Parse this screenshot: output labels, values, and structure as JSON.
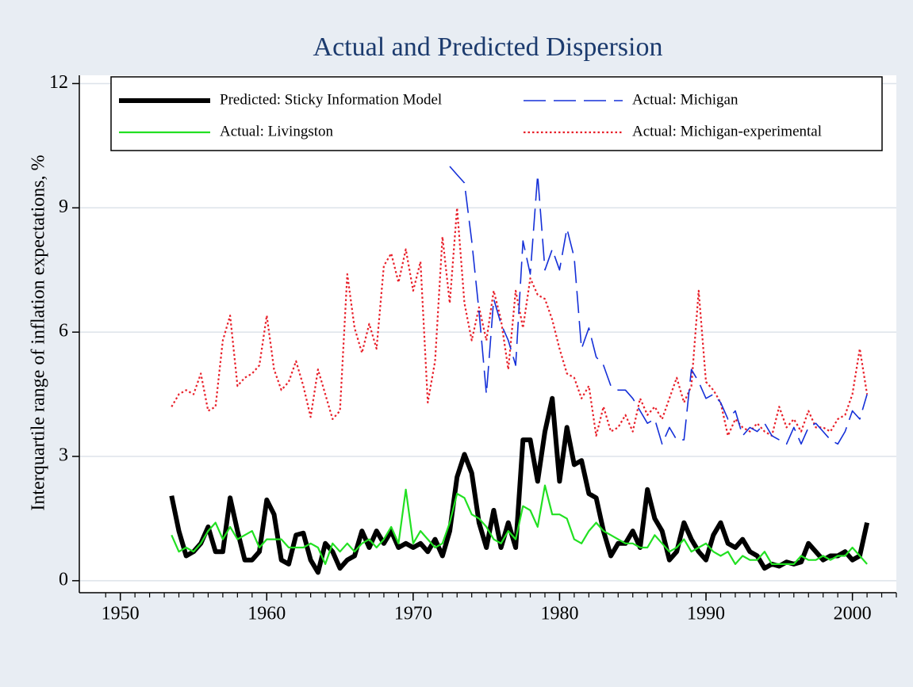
{
  "chart_data": {
    "type": "line",
    "title": "Actual and Predicted Dispersion",
    "y_label": "Interquartile range of inflation expectations, %",
    "x": [
      1953.5,
      1954,
      1954.5,
      1955,
      1955.5,
      1956,
      1956.5,
      1957,
      1957.5,
      1958,
      1958.5,
      1959,
      1959.5,
      1960,
      1960.5,
      1961,
      1961.5,
      1962,
      1962.5,
      1963,
      1963.5,
      1964,
      1964.5,
      1965,
      1965.5,
      1966,
      1966.5,
      1967,
      1967.5,
      1968,
      1968.5,
      1969,
      1969.5,
      1970,
      1970.5,
      1971,
      1971.5,
      1972,
      1972.5,
      1973,
      1973.5,
      1974,
      1974.5,
      1975,
      1975.5,
      1976,
      1976.5,
      1977,
      1977.5,
      1978,
      1978.5,
      1979,
      1979.5,
      1980,
      1980.5,
      1981,
      1981.5,
      1982,
      1982.5,
      1983,
      1983.5,
      1984,
      1984.5,
      1985,
      1985.5,
      1986,
      1986.5,
      1987,
      1987.5,
      1988,
      1988.5,
      1989,
      1989.5,
      1990,
      1990.5,
      1991,
      1991.5,
      1992,
      1992.5,
      1993,
      1993.5,
      1994,
      1994.5,
      1995,
      1995.5,
      1996,
      1996.5,
      1997,
      1997.5,
      1998,
      1998.5,
      1999,
      1999.5,
      2000,
      2000.5,
      2001
    ],
    "series": [
      {
        "name": "Predicted: Sticky Information Model",
        "color": "#000000",
        "width": 6,
        "dash": "none",
        "values": [
          2.05,
          1.2,
          0.6,
          0.7,
          0.9,
          1.3,
          0.7,
          0.7,
          2.0,
          1.2,
          0.5,
          0.5,
          0.7,
          1.95,
          1.6,
          0.5,
          0.4,
          1.1,
          1.15,
          0.5,
          0.2,
          0.9,
          0.7,
          0.3,
          0.5,
          0.6,
          1.2,
          0.8,
          1.2,
          0.9,
          1.2,
          0.8,
          0.9,
          0.8,
          0.9,
          0.7,
          1.0,
          0.6,
          1.2,
          2.5,
          3.05,
          2.6,
          1.4,
          0.8,
          1.7,
          0.8,
          1.4,
          0.8,
          3.4,
          3.4,
          2.4,
          3.6,
          4.4,
          2.4,
          3.7,
          2.8,
          2.9,
          2.1,
          2.0,
          1.2,
          0.6,
          0.9,
          0.9,
          1.2,
          0.8,
          2.2,
          1.5,
          1.2,
          0.5,
          0.7,
          1.4,
          1.0,
          0.7,
          0.5,
          1.1,
          1.4,
          0.9,
          0.8,
          1.0,
          0.7,
          0.6,
          0.3,
          0.4,
          0.35,
          0.45,
          0.4,
          0.45,
          0.9,
          0.7,
          0.5,
          0.6,
          0.6,
          0.7,
          0.5,
          0.6,
          1.4
        ]
      },
      {
        "name": "Actual: Michigan",
        "color": "#1530d8",
        "width": 1.6,
        "dash": "28 10",
        "values": [
          null,
          null,
          null,
          null,
          null,
          null,
          null,
          null,
          null,
          null,
          null,
          null,
          null,
          null,
          null,
          null,
          null,
          null,
          null,
          null,
          null,
          null,
          null,
          null,
          null,
          null,
          null,
          null,
          null,
          null,
          null,
          null,
          null,
          null,
          null,
          null,
          null,
          null,
          10.0,
          9.8,
          9.6,
          8.2,
          6.5,
          4.5,
          6.8,
          6.2,
          5.8,
          5.2,
          8.2,
          7.4,
          9.8,
          7.5,
          8.0,
          7.5,
          8.5,
          7.8,
          5.6,
          6.1,
          5.4,
          5.2,
          4.7,
          4.6,
          4.6,
          4.4,
          4.1,
          3.8,
          3.9,
          3.3,
          3.7,
          3.4,
          3.4,
          5.1,
          4.8,
          4.4,
          4.5,
          4.3,
          3.9,
          4.1,
          3.5,
          3.7,
          3.6,
          3.8,
          3.5,
          3.4,
          3.3,
          3.7,
          3.3,
          3.7,
          3.8,
          3.6,
          3.4,
          3.3,
          3.6,
          4.1,
          3.9,
          4.5
        ]
      },
      {
        "name": "Actual: Livingston",
        "color": "#22e022",
        "width": 2.2,
        "dash": "none",
        "values": [
          1.1,
          0.7,
          0.8,
          0.7,
          0.9,
          1.2,
          1.4,
          1.0,
          1.3,
          1.0,
          1.1,
          1.2,
          0.8,
          1.0,
          1.0,
          1.0,
          0.8,
          0.8,
          0.8,
          0.9,
          0.8,
          0.4,
          0.9,
          0.7,
          0.9,
          0.7,
          0.9,
          1.0,
          0.8,
          1.0,
          1.3,
          0.9,
          2.2,
          0.9,
          1.2,
          1.0,
          0.8,
          0.9,
          1.4,
          2.1,
          2.0,
          1.6,
          1.5,
          1.3,
          1.0,
          0.9,
          1.2,
          1.0,
          1.8,
          1.7,
          1.3,
          2.3,
          1.6,
          1.6,
          1.5,
          1.0,
          0.9,
          1.2,
          1.4,
          1.2,
          1.1,
          1.0,
          0.9,
          0.9,
          0.8,
          0.8,
          1.1,
          0.9,
          0.7,
          0.8,
          1.0,
          0.7,
          0.8,
          0.9,
          0.7,
          0.6,
          0.7,
          0.4,
          0.6,
          0.5,
          0.5,
          0.7,
          0.4,
          0.4,
          0.4,
          0.4,
          0.6,
          0.5,
          0.5,
          0.6,
          0.5,
          0.6,
          0.6,
          0.8,
          0.6,
          0.4
        ]
      },
      {
        "name": "Actual: Michigan-experimental",
        "color": "#e8202a",
        "width": 2.2,
        "dash": "2.5 3",
        "values": [
          4.2,
          4.5,
          4.6,
          4.5,
          5.0,
          4.1,
          4.2,
          5.8,
          6.4,
          4.7,
          4.9,
          5.0,
          5.2,
          6.4,
          5.1,
          4.6,
          4.8,
          5.3,
          4.7,
          3.95,
          5.1,
          4.5,
          3.9,
          4.1,
          7.4,
          6.1,
          5.5,
          6.2,
          5.6,
          7.6,
          7.9,
          7.2,
          8.0,
          7.0,
          7.7,
          4.3,
          5.3,
          8.3,
          6.7,
          9.0,
          6.7,
          5.8,
          6.6,
          5.8,
          7.0,
          6.3,
          5.1,
          7.0,
          6.1,
          7.3,
          6.9,
          6.8,
          6.3,
          5.6,
          5.0,
          4.9,
          4.4,
          4.7,
          3.5,
          4.2,
          3.6,
          3.7,
          4.0,
          3.6,
          4.4,
          4.0,
          4.2,
          3.9,
          4.4,
          4.9,
          4.3,
          4.7,
          7.0,
          4.8,
          4.6,
          4.3,
          3.5,
          3.9,
          3.7,
          3.6,
          3.8,
          3.6,
          3.5,
          4.2,
          3.7,
          3.9,
          3.6,
          4.1,
          3.7,
          3.7,
          3.6,
          3.9,
          4.0,
          4.5,
          5.6,
          4.5
        ]
      }
    ],
    "xlim": [
      1947.2,
      2003
    ],
    "xticks": [
      1950,
      1960,
      1970,
      1980,
      1990,
      2000
    ],
    "ylim": [
      -0.29,
      12.2
    ],
    "yticks": [
      0,
      3,
      6,
      9,
      12
    ],
    "grid": true
  }
}
